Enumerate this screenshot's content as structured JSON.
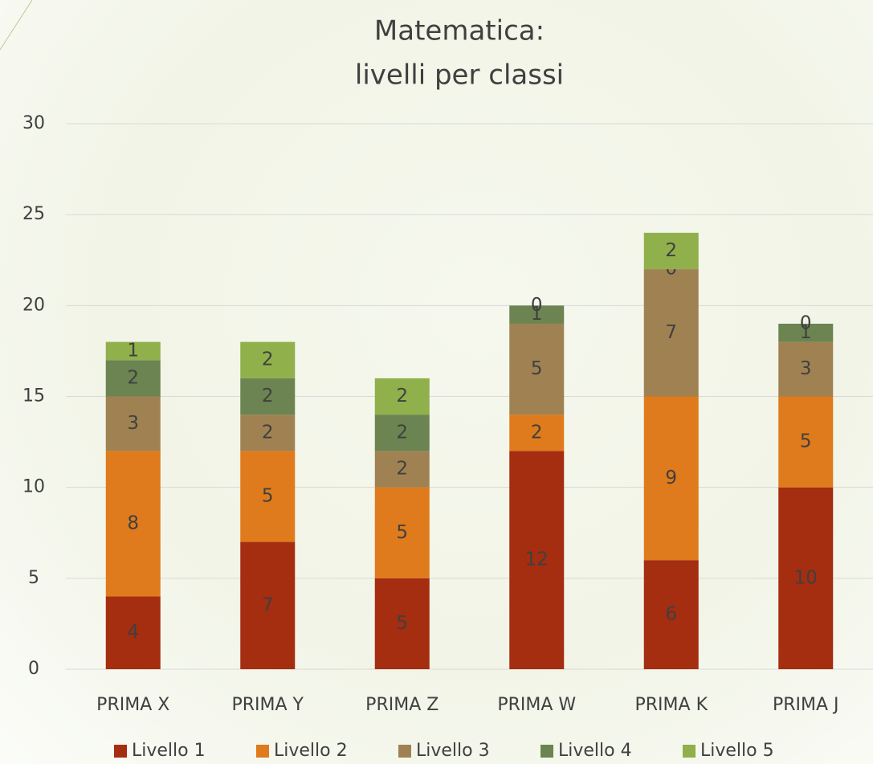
{
  "chart_data": {
    "type": "stacked_bar",
    "title": [
      "Matematica:",
      "livelli per classi"
    ],
    "categories": [
      "PRIMA X",
      "PRIMA Y",
      "PRIMA Z",
      "PRIMA W",
      "PRIMA K",
      "PRIMA J"
    ],
    "series": [
      {
        "name": "Livello 1",
        "color": "#a52d10",
        "values": [
          4,
          7,
          5,
          12,
          6,
          10
        ]
      },
      {
        "name": "Livello 2",
        "color": "#df7b1c",
        "values": [
          8,
          5,
          5,
          2,
          9,
          5
        ]
      },
      {
        "name": "Livello 3",
        "color": "#a08252",
        "values": [
          3,
          2,
          2,
          5,
          7,
          3
        ]
      },
      {
        "name": "Livello 4",
        "color": "#6b8451",
        "values": [
          2,
          2,
          2,
          1,
          0,
          1
        ]
      },
      {
        "name": "Livello 5",
        "color": "#8fb04b",
        "values": [
          1,
          2,
          2,
          0,
          2,
          0
        ]
      }
    ],
    "ylim": [
      0,
      30
    ],
    "yticks": [
      0,
      5,
      10,
      15,
      20,
      25,
      30
    ],
    "grid": true,
    "legend": "bottom"
  }
}
